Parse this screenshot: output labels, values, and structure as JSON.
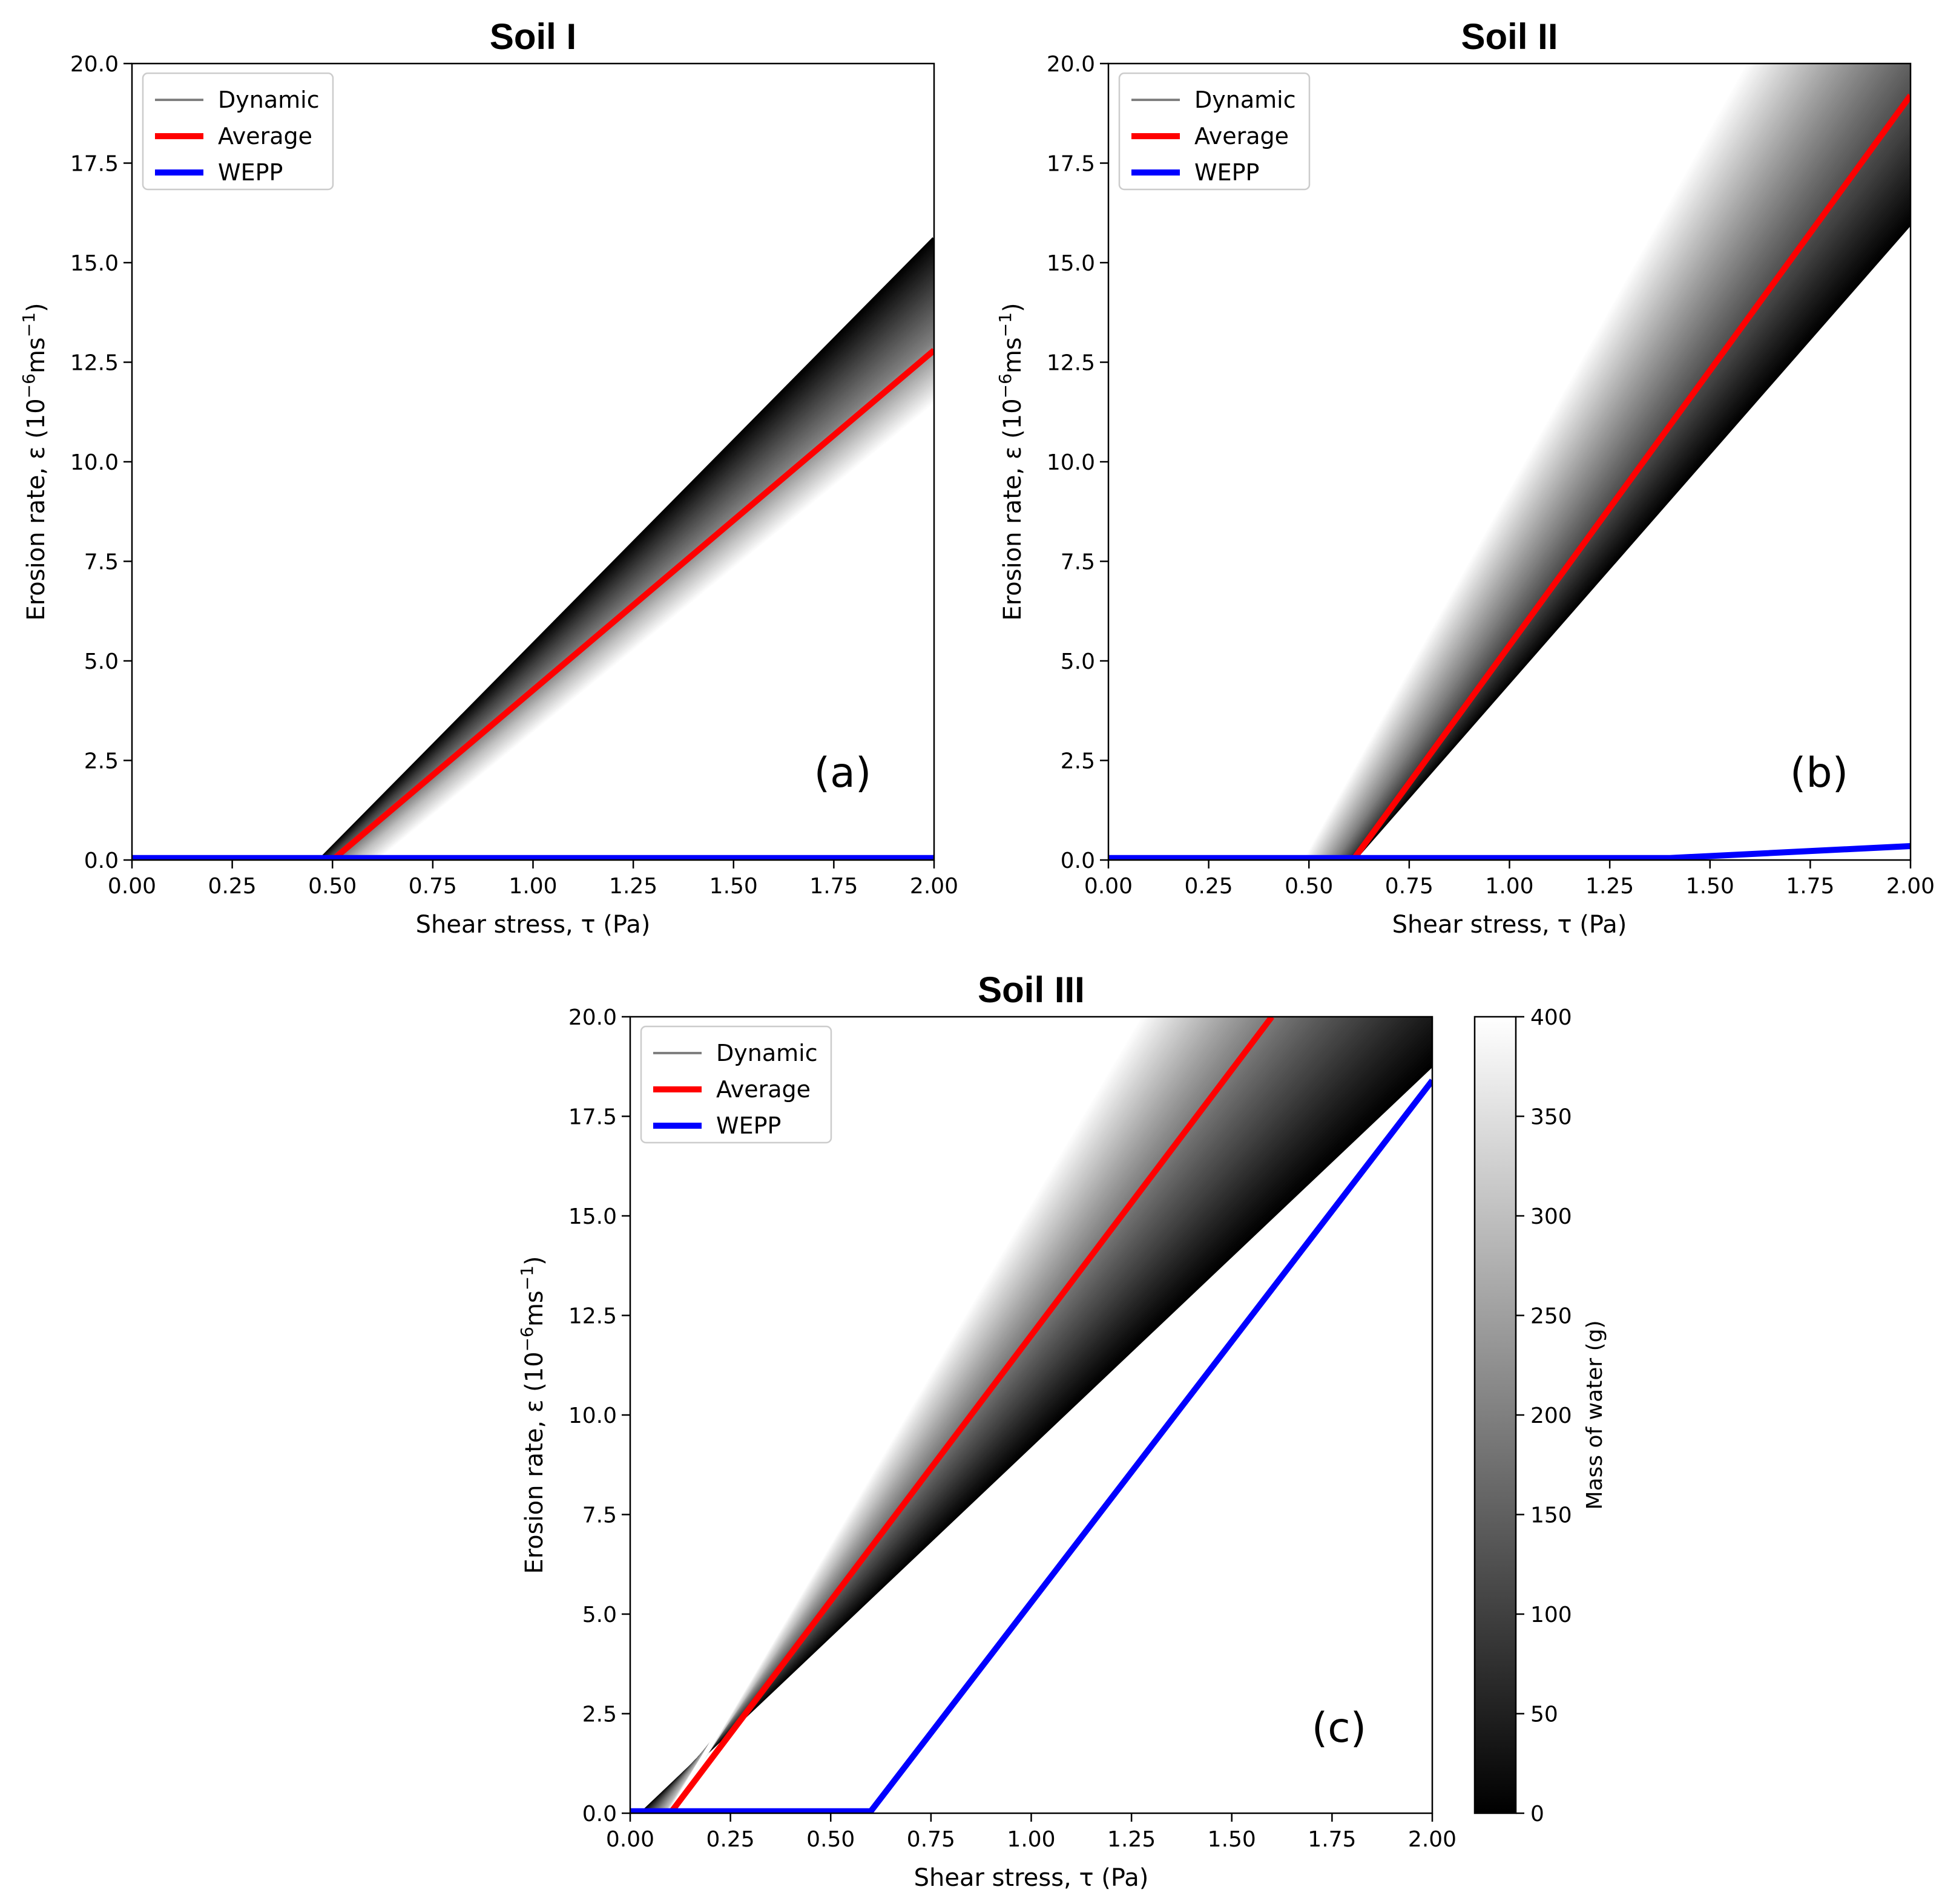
{
  "figure": {
    "colormap": "gray",
    "colorbar": {
      "label": "Mass of water (g)",
      "min": 0,
      "max": 400,
      "ticks": [
        "0",
        "50",
        "100",
        "150",
        "200",
        "250",
        "300",
        "350",
        "400"
      ]
    }
  },
  "chart_data": [
    {
      "id": "a",
      "type": "line",
      "title": "Soil I",
      "panel_label": "(a)",
      "xlabel": "Shear stress, τ (Pa)",
      "ylabel_main": "Erosion rate, ε (10",
      "ylabel_sup": "−6",
      "ylabel_tail": "ms",
      "ylabel_sup2": "−1",
      "ylabel_close": ")",
      "xlim": [
        0,
        2
      ],
      "ylim": [
        0,
        20
      ],
      "xticks": [
        "0.00",
        "0.25",
        "0.50",
        "0.75",
        "1.00",
        "1.25",
        "1.50",
        "1.75",
        "2.00"
      ],
      "yticks": [
        "0.0",
        "2.5",
        "5.0",
        "7.5",
        "10.0",
        "12.5",
        "15.0",
        "17.5",
        "20.0"
      ],
      "legend": {
        "position": "top-left",
        "entries": [
          "Dynamic",
          "Average",
          "WEPP"
        ]
      },
      "colors": {
        "dynamic": "#808080",
        "average": "#ff0000",
        "wepp": "#0000ff"
      },
      "dynamic_band": [
        {
          "mass": 0,
          "threshold": 0.47,
          "y_at_2": 15.6
        },
        {
          "mass": 100,
          "threshold": 0.49,
          "y_at_2": 14.3
        },
        {
          "mass": 200,
          "threshold": 0.52,
          "y_at_2": 13.0
        },
        {
          "mass": 300,
          "threshold": 0.56,
          "y_at_2": 12.2
        },
        {
          "mass": 400,
          "threshold": 0.62,
          "y_at_2": 11.4
        }
      ],
      "series": [
        {
          "name": "Average",
          "x": [
            0,
            0.5,
            2.0
          ],
          "y": [
            0,
            0,
            12.8
          ]
        },
        {
          "name": "WEPP",
          "x": [
            0,
            2.0
          ],
          "y": [
            0.05,
            0.05
          ]
        }
      ]
    },
    {
      "id": "b",
      "type": "line",
      "title": "Soil II",
      "panel_label": "(b)",
      "xlabel": "Shear stress, τ (Pa)",
      "ylabel_main": "Erosion rate, ε (10",
      "ylabel_sup": "−6",
      "ylabel_tail": "ms",
      "ylabel_sup2": "−1",
      "ylabel_close": ")",
      "xlim": [
        0,
        2
      ],
      "ylim": [
        0,
        20
      ],
      "xticks": [
        "0.00",
        "0.25",
        "0.50",
        "0.75",
        "1.00",
        "1.25",
        "1.50",
        "1.75",
        "2.00"
      ],
      "yticks": [
        "0.0",
        "2.5",
        "5.0",
        "7.5",
        "10.0",
        "12.5",
        "15.0",
        "17.5",
        "20.0"
      ],
      "legend": {
        "position": "top-left",
        "entries": [
          "Dynamic",
          "Average",
          "WEPP"
        ]
      },
      "colors": {
        "dynamic": "#808080",
        "average": "#ff0000",
        "wepp": "#0000ff"
      },
      "dynamic_band": [
        {
          "mass": 0,
          "threshold": 0.61,
          "y_at_2": 16.0
        },
        {
          "mass": 100,
          "threshold": 0.59,
          "y_at_2": 18.5
        },
        {
          "mass": 200,
          "threshold": 0.56,
          "y_at_2": 21.5
        },
        {
          "mass": 300,
          "threshold": 0.52,
          "y_at_2": 24.5
        },
        {
          "mass": 400,
          "threshold": 0.48,
          "y_at_2": 27.5
        }
      ],
      "series": [
        {
          "name": "Average",
          "x": [
            0,
            0.61,
            2.0
          ],
          "y": [
            0,
            0,
            19.2
          ]
        },
        {
          "name": "WEPP",
          "x": [
            0,
            1.4,
            2.0
          ],
          "y": [
            0.05,
            0.05,
            0.35
          ]
        }
      ]
    },
    {
      "id": "c",
      "type": "line",
      "title": "Soil III",
      "panel_label": "(c)",
      "xlabel": "Shear stress, τ (Pa)",
      "ylabel_main": "Erosion rate, ε (10",
      "ylabel_sup": "−6",
      "ylabel_tail": "ms",
      "ylabel_sup2": "−1",
      "ylabel_close": ")",
      "xlim": [
        0,
        2
      ],
      "ylim": [
        0,
        20
      ],
      "xticks": [
        "0.00",
        "0.25",
        "0.50",
        "0.75",
        "1.00",
        "1.25",
        "1.50",
        "1.75",
        "2.00"
      ],
      "yticks": [
        "0.0",
        "2.5",
        "5.0",
        "7.5",
        "10.0",
        "12.5",
        "15.0",
        "17.5",
        "20.0"
      ],
      "legend": {
        "position": "top-left",
        "entries": [
          "Dynamic",
          "Average",
          "WEPP"
        ]
      },
      "colors": {
        "dynamic": "#808080",
        "average": "#ff0000",
        "wepp": "#0000ff"
      },
      "dynamic_band": [
        {
          "mass": 0,
          "threshold": 0.03,
          "y_at_2": 18.8
        },
        {
          "mass": 100,
          "threshold": 0.05,
          "y_at_2": 22.0
        },
        {
          "mass": 200,
          "threshold": 0.07,
          "y_at_2": 25.5
        },
        {
          "mass": 300,
          "threshold": 0.09,
          "y_at_2": 29.0
        },
        {
          "mass": 400,
          "threshold": 0.1,
          "y_at_2": 32.5
        }
      ],
      "series": [
        {
          "name": "Average",
          "x": [
            0,
            0.1,
            1.6
          ],
          "y": [
            0,
            0,
            20.0
          ]
        },
        {
          "name": "WEPP",
          "x": [
            0,
            0.6,
            2.0
          ],
          "y": [
            0.05,
            0.05,
            18.4
          ]
        }
      ]
    }
  ]
}
